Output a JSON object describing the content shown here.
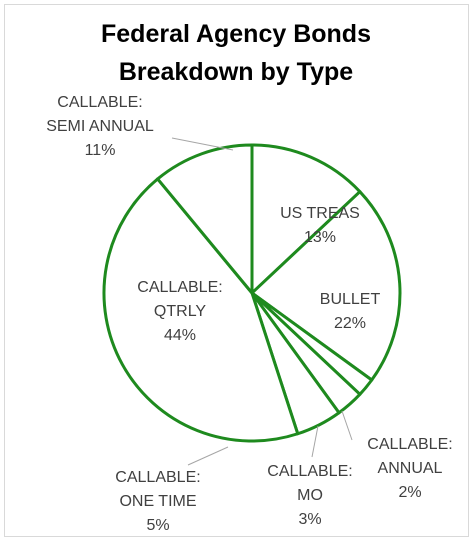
{
  "chart_data": {
    "type": "pie",
    "title_lines": [
      "Federal Agency Bonds",
      "Breakdown  by Type"
    ],
    "slice_color": "#ffffff",
    "edge_color": "#1e8a1e",
    "leader_color": "#a6a6a6",
    "label_color": "#404040",
    "slices": [
      {
        "name": "US TREAS",
        "value": 13,
        "label_lines": [
          "US TREAS",
          "13%"
        ]
      },
      {
        "name": "BULLET",
        "value": 22,
        "label_lines": [
          "BULLET",
          "22%"
        ]
      },
      {
        "name": "CALLABLE: ANNUAL",
        "value": 2,
        "label_lines": [
          "CALLABLE:",
          "ANNUAL",
          "2%"
        ]
      },
      {
        "name": "CALLABLE: MO",
        "value": 3,
        "label_lines": [
          "CALLABLE:",
          "MO",
          "3%"
        ]
      },
      {
        "name": "CALLABLE: ONE TIME",
        "value": 5,
        "label_lines": [
          "CALLABLE:",
          "ONE TIME",
          "5%"
        ]
      },
      {
        "name": "CALLABLE: QTRLY",
        "value": 44,
        "label_lines": [
          "CALLABLE:",
          "QTRLY",
          "44%"
        ]
      },
      {
        "name": "CALLABLE: SEMI ANNUAL",
        "value": 11,
        "label_lines": [
          "CALLABLE:",
          "SEMI ANNUAL",
          "11%"
        ]
      }
    ]
  }
}
